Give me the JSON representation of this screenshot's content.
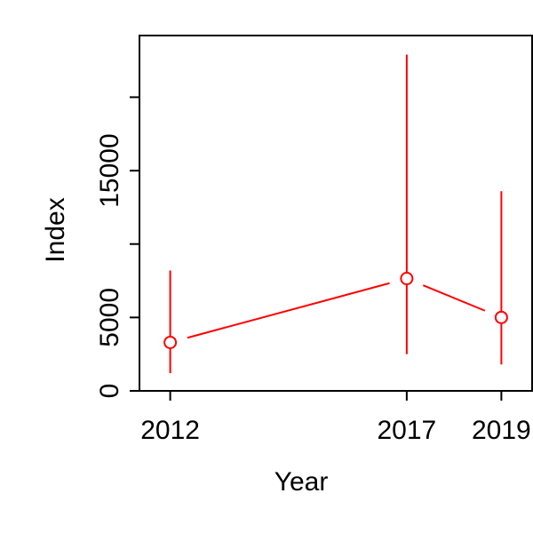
{
  "chart_data": {
    "type": "line",
    "title": "",
    "xlabel": "Year",
    "ylabel": "Index",
    "x": [
      2012,
      2017,
      2019
    ],
    "xlim": [
      2011.35,
      2019.65
    ],
    "ylim": [
      0,
      24200
    ],
    "x_ticks": [
      2012,
      2017,
      2019
    ],
    "y_ticks": [
      0,
      5000,
      10000,
      15000,
      20000
    ],
    "y_tick_labels": [
      "0",
      "5000",
      "",
      "15000",
      ""
    ],
    "grid": false,
    "series": [
      {
        "values": [
          3300,
          7650,
          5000
        ],
        "lower": [
          1200,
          2500,
          1800
        ],
        "upper": [
          8200,
          22900,
          13600
        ],
        "color": "#ff0000",
        "marker": "open-circle"
      }
    ]
  }
}
